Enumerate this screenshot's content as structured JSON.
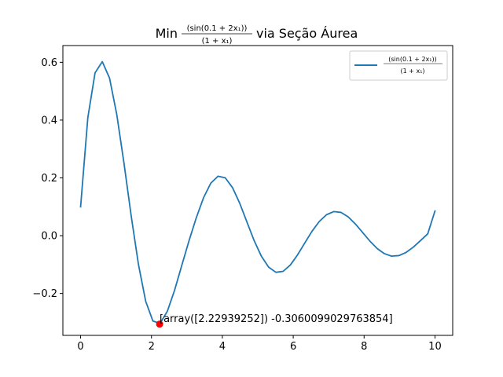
{
  "chart_data": {
    "type": "line",
    "title": {
      "prefix": "Min",
      "numerator": "(sin(0.1 + 2x₁))",
      "denominator": "(1 + x₁)",
      "suffix": "via Seção Áurea"
    },
    "xlim": [
      -0.5,
      10.5
    ],
    "ylim": [
      -0.345,
      0.658
    ],
    "x_ticks": [
      0,
      2,
      4,
      6,
      8,
      10
    ],
    "x_tick_labels": [
      "0",
      "2",
      "4",
      "6",
      "8",
      "10"
    ],
    "y_ticks": [
      -0.2,
      0.0,
      0.2,
      0.4,
      0.6
    ],
    "y_tick_labels": [
      "−0.2",
      "0.0",
      "0.2",
      "0.4",
      "0.6"
    ],
    "grid": false,
    "legend": {
      "location": "upper right",
      "entries": [
        {
          "numerator": "(sin(0.1 + 2x₁))",
          "denominator": "(1 + x₁)",
          "color": "#1f77b4"
        }
      ]
    },
    "series": [
      {
        "color": "#1f77b4",
        "x": [
          0.0,
          0.2041,
          0.4082,
          0.6122,
          0.8163,
          1.0204,
          1.2245,
          1.4286,
          1.6327,
          1.8367,
          2.0408,
          2.2449,
          2.449,
          2.6531,
          2.8571,
          3.0612,
          3.2653,
          3.4694,
          3.6735,
          3.8776,
          4.0816,
          4.2857,
          4.4898,
          4.6939,
          4.898,
          5.102,
          5.3061,
          5.5102,
          5.7143,
          5.9184,
          6.1224,
          6.3265,
          6.5306,
          6.7347,
          6.9388,
          7.1429,
          7.3469,
          7.551,
          7.7551,
          7.9592,
          8.1633,
          8.3673,
          8.5714,
          8.7755,
          8.9796,
          9.1837,
          9.3878,
          9.5918,
          9.7959,
          10.0
        ],
        "y": [
          0.0998,
          0.4085,
          0.5637,
          0.6022,
          0.5456,
          0.4197,
          0.2508,
          0.0678,
          -0.0996,
          -0.2268,
          -0.2955,
          -0.3035,
          -0.2612,
          -0.1884,
          -0.1022,
          -0.0169,
          0.0624,
          0.1313,
          0.1816,
          0.2058,
          0.2003,
          0.1666,
          0.1125,
          0.0474,
          -0.0172,
          -0.0713,
          -0.1089,
          -0.1267,
          -0.1235,
          -0.1016,
          -0.0664,
          -0.0251,
          0.0153,
          0.0491,
          0.0726,
          0.0834,
          0.0806,
          0.0652,
          0.0404,
          0.0109,
          -0.0187,
          -0.0442,
          -0.0622,
          -0.0707,
          -0.069,
          -0.058,
          -0.0397,
          -0.017,
          0.0065,
          0.0855
        ]
      }
    ],
    "minimum_point": {
      "x": 2.22939252,
      "y": -0.3060099029763854,
      "color": "#ff0000"
    },
    "annotation": "[array([2.22939252]) -0.3060099029763854]"
  }
}
